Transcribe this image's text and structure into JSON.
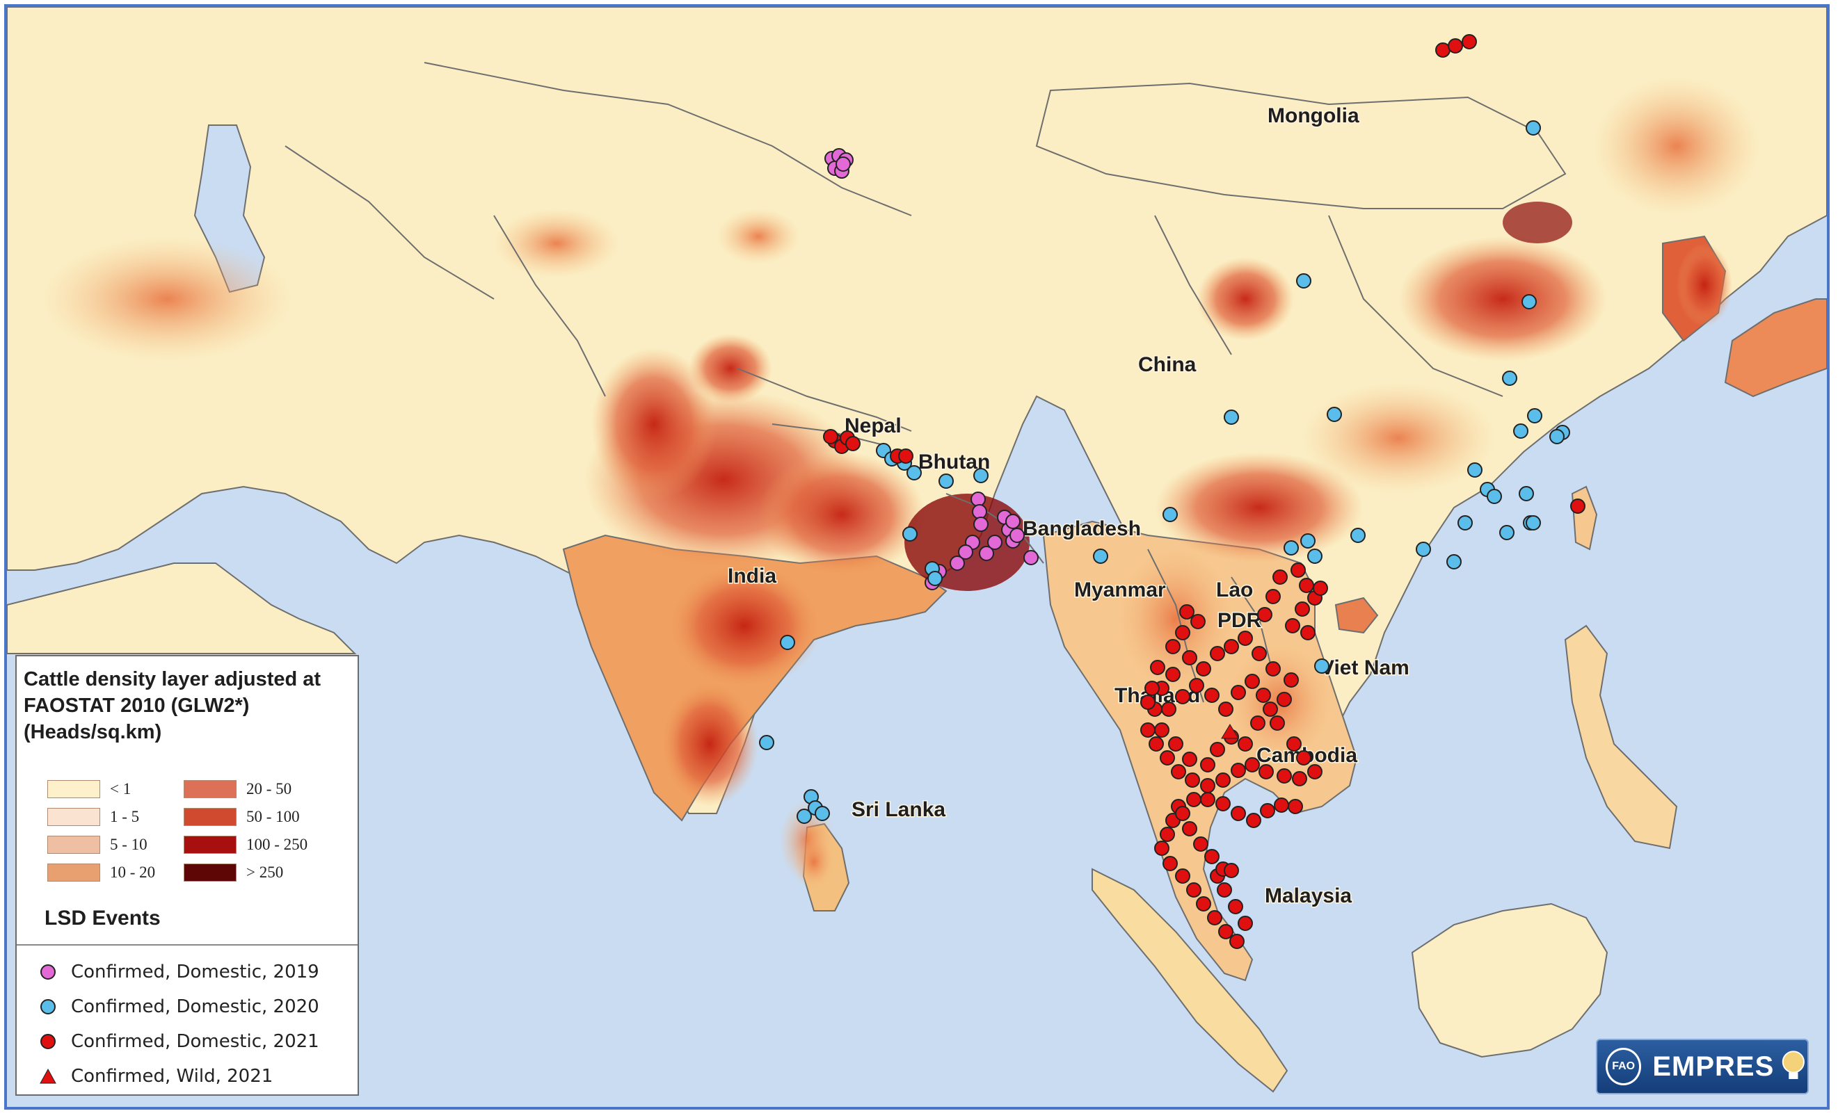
{
  "map": {
    "labels": [
      {
        "text": "Mongolia"
      },
      {
        "text": "China"
      },
      {
        "text": "Nepal"
      },
      {
        "text": "Bhutan"
      },
      {
        "text": "Bangladesh"
      },
      {
        "text": "India"
      },
      {
        "text": "Myanmar"
      },
      {
        "text": "Lao"
      },
      {
        "text": "PDR"
      },
      {
        "text": "Viet Nam"
      },
      {
        "text": "Thailand"
      },
      {
        "text": "Cambodia"
      },
      {
        "text": "Sri Lanka"
      },
      {
        "text": "Malaysia"
      }
    ],
    "colors": {
      "sea": "#c9dcf2",
      "land_low": "#fbeec4",
      "border": "#6e6e6e"
    }
  },
  "legend": {
    "title": "Cattle density layer adjusted at FAOSTAT 2010 (GLW2*) (Heads/sq.km)",
    "density_classes": [
      {
        "label": "< 1",
        "color": "#fdf1cc"
      },
      {
        "label": "1 - 5",
        "color": "#fbe3d2"
      },
      {
        "label": "5 - 10",
        "color": "#efbfa4"
      },
      {
        "label": "10 - 20",
        "color": "#e8a070"
      },
      {
        "label": "20 - 50",
        "color": "#dc7158"
      },
      {
        "label": "50 - 100",
        "color": "#d04a30"
      },
      {
        "label": "100 - 250",
        "color": "#a81010"
      },
      {
        "label": "> 250",
        "color": "#5e0505"
      }
    ],
    "events_title": "LSD Events",
    "events": [
      {
        "label": "Confirmed, Domestic, 2019",
        "color": "#e36ad6",
        "shape": "circle"
      },
      {
        "label": "Confirmed, Domestic, 2020",
        "color": "#5bbde9",
        "shape": "circle"
      },
      {
        "label": "Confirmed, Domestic, 2021",
        "color": "#e01010",
        "shape": "circle"
      },
      {
        "label": "Confirmed, Wild, 2021",
        "color": "#e01010",
        "shape": "triangle"
      }
    ]
  },
  "logo": {
    "text": "EMPRES",
    "emblem": "FAO"
  }
}
